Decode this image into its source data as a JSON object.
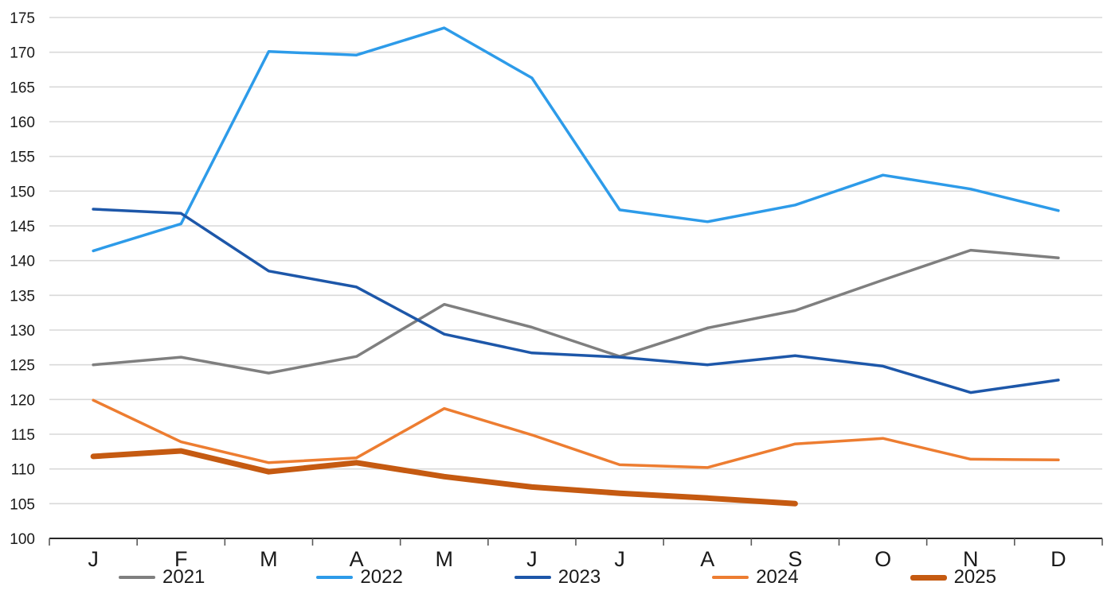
{
  "chart_data": {
    "type": "line",
    "title": "",
    "xlabel": "",
    "ylabel": "",
    "categories": [
      "J",
      "F",
      "M",
      "A",
      "M",
      "J",
      "J",
      "A",
      "S",
      "O",
      "N",
      "D"
    ],
    "y_ticks": [
      100,
      105,
      110,
      115,
      120,
      125,
      130,
      135,
      140,
      145,
      150,
      155,
      160,
      165,
      170,
      175
    ],
    "ylim": [
      100,
      175
    ],
    "grid": "horizontal",
    "legend_position": "bottom",
    "series": [
      {
        "name": "2021",
        "color": "#7F7F7F",
        "stroke_width": 3.5,
        "values": [
          125.0,
          126.1,
          123.8,
          126.2,
          133.7,
          130.4,
          126.2,
          130.3,
          132.8,
          137.2,
          141.5,
          140.4
        ]
      },
      {
        "name": "2022",
        "color": "#2D9BE9",
        "stroke_width": 3.5,
        "values": [
          141.4,
          145.3,
          170.1,
          169.6,
          173.5,
          166.3,
          147.3,
          145.6,
          148.0,
          152.3,
          150.3,
          147.2
        ]
      },
      {
        "name": "2023",
        "color": "#1D57A9",
        "stroke_width": 3.5,
        "values": [
          147.4,
          146.8,
          138.5,
          136.2,
          129.4,
          126.7,
          126.1,
          125.0,
          126.3,
          124.8,
          121.0,
          122.8
        ]
      },
      {
        "name": "2024",
        "color": "#ED7D31",
        "stroke_width": 3.5,
        "values": [
          119.9,
          113.9,
          110.9,
          111.6,
          118.7,
          114.9,
          110.6,
          110.2,
          113.6,
          114.4,
          111.4,
          111.3
        ]
      },
      {
        "name": "2025",
        "color": "#C55A11",
        "stroke_width": 7,
        "values": [
          111.8,
          112.6,
          109.6,
          110.9,
          108.9,
          107.4,
          106.5,
          105.8,
          105.0,
          null,
          null,
          null
        ]
      }
    ],
    "colors": {
      "gridline": "#D9D9D9",
      "axis_line": "#262626",
      "tick_mark": "#595959",
      "label_text": "#1a1a1a"
    }
  }
}
